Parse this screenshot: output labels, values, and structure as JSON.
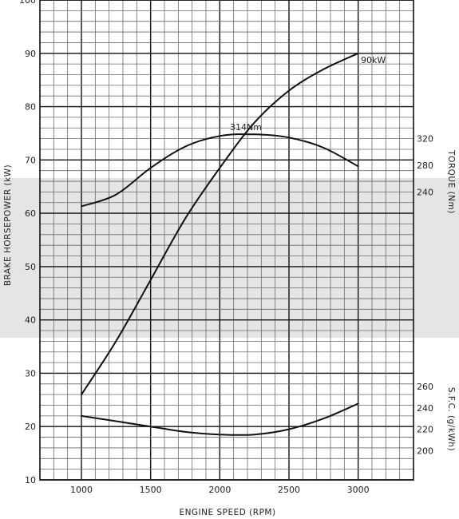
{
  "chart_data": {
    "type": "line",
    "x": [
      1000,
      1250,
      1500,
      1750,
      2000,
      2250,
      2500,
      2750,
      3000
    ],
    "xlim": [
      700,
      3400
    ],
    "x_ticks": [
      1000,
      1500,
      2000,
      2500,
      3000
    ],
    "xlabel": "ENGINE SPEED (RPM)",
    "left_axis": {
      "label": "BRAKE HORSEPOWER (kW)",
      "ylim": [
        10,
        100
      ],
      "ticks": [
        10,
        20,
        30,
        40,
        50,
        60,
        70,
        80,
        90,
        100
      ]
    },
    "right_axis_torque": {
      "label": "TORQUE (Nm)",
      "ticks": [
        240,
        280,
        320
      ]
    },
    "right_axis_sfc": {
      "label": "S.F.C. (g/kWh)",
      "ticks": [
        200,
        220,
        240,
        260
      ]
    },
    "series": [
      {
        "values": [
          26,
          36,
          47.5,
          59,
          68.5,
          77,
          83,
          87,
          90
        ]
      },
      {
        "values": [
          61.3,
          63.5,
          68.5,
          72.5,
          74.5,
          74.8,
          74.2,
          72.3,
          68.8
        ]
      },
      {
        "values": [
          22,
          21,
          20,
          19,
          18.5,
          18.5,
          19.5,
          21.5,
          24.3
        ]
      }
    ],
    "grid": true,
    "annotations": [
      {
        "text": "90kW",
        "x": 3000,
        "y": 90
      },
      {
        "text": "314Nm",
        "x": 2200,
        "y": 75
      }
    ]
  }
}
